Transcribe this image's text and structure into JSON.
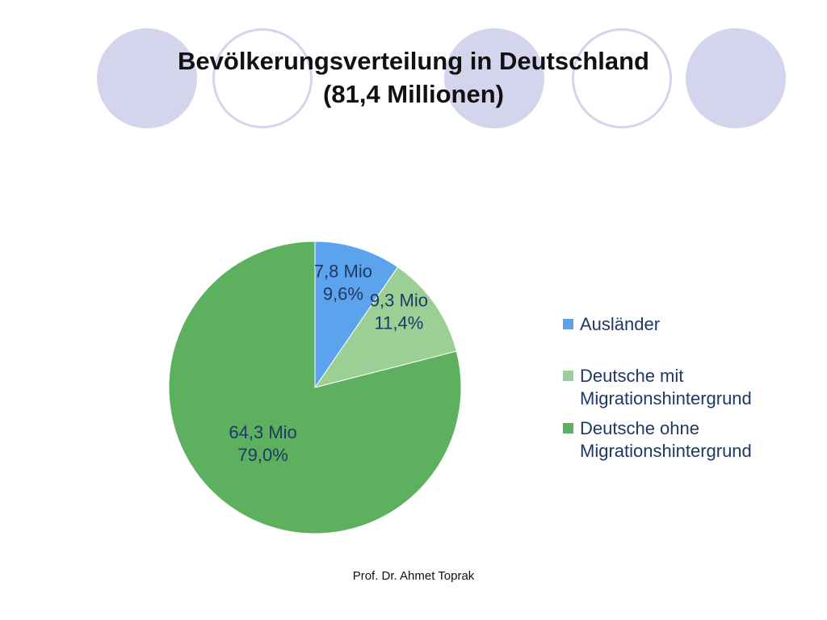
{
  "slide": {
    "title_line1": "Bevölkerungsverteilung in Deutschland",
    "title_line2": "(81,4 Millionen)",
    "footer": "Prof. Dr. Ahmet Toprak"
  },
  "chart_data": {
    "type": "pie",
    "title": "",
    "total": "81,4 Millionen",
    "legend_position": "right",
    "slices": [
      {
        "name": "Ausländer",
        "legend_label": "Ausländer",
        "value": 7.8,
        "percent": 9.6,
        "label_value": "7,8 Mio",
        "label_percent": "9,6%",
        "color": "#5ba3ec"
      },
      {
        "name": "Deutsche mit Migrationshintergrund",
        "legend_label": "Deutsche mit\nMigrationshintergrund",
        "value": 9.3,
        "percent": 11.4,
        "label_value": "9,3 Mio",
        "label_percent": "11,4%",
        "color": "#9bcf96"
      },
      {
        "name": "Deutsche ohne Migrationshintergrund",
        "legend_label": "Deutsche ohne\nMigrationshintergrund",
        "value": 64.3,
        "percent": 79.0,
        "label_value": "64,3 Mio",
        "label_percent": "79,0%",
        "color": "#5db15e"
      }
    ]
  }
}
